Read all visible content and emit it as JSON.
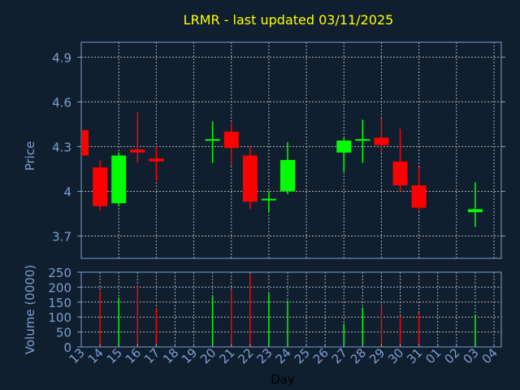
{
  "chart_data": {
    "type": "candlestick",
    "title": "LRMR - last updated 03/11/2025",
    "xlabel": "Day",
    "price_ylabel": "Price",
    "volume_ylabel": "Volume (0000)",
    "x_tick_labels": [
      "13",
      "14",
      "15",
      "16",
      "17",
      "18",
      "19",
      "20",
      "21",
      "22",
      "23",
      "24",
      "25",
      "26",
      "27",
      "28",
      "29",
      "30",
      "31",
      "01",
      "02",
      "03",
      "04"
    ],
    "price_ylim": [
      3.55,
      5.0
    ],
    "price_ticks": [
      3.7,
      4,
      4.3,
      4.6,
      4.9
    ],
    "price_tick_labels": [
      "3.7",
      "4",
      "4.3",
      "4.6",
      "4.9"
    ],
    "volume_ylim": [
      0,
      250
    ],
    "volume_ticks": [
      0,
      50,
      100,
      150,
      200,
      250
    ],
    "volume_tick_labels": [
      "0",
      "50",
      "100",
      "150",
      "200",
      "250"
    ],
    "grid": true,
    "colors": {
      "up": "#00ff00",
      "down": "#ff0000",
      "title": "#ffff00",
      "axis": "#7f9fcf",
      "background": "#0f1f2f",
      "grid": "#b0b0b0"
    },
    "candles": [
      {
        "day": "13",
        "open": 4.41,
        "high": 4.41,
        "low": 4.24,
        "close": 4.24,
        "volume": null
      },
      {
        "day": "14",
        "open": 4.16,
        "high": 4.21,
        "low": 3.87,
        "close": 3.9,
        "volume": 187
      },
      {
        "day": "15",
        "open": 3.92,
        "high": 4.26,
        "low": 3.9,
        "close": 4.24,
        "volume": 165
      },
      {
        "day": "16",
        "open": 4.28,
        "high": 4.53,
        "low": 4.19,
        "close": 4.26,
        "volume": 205
      },
      {
        "day": "17",
        "open": 4.22,
        "high": 4.3,
        "low": 4.07,
        "close": 4.2,
        "volume": 129
      },
      {
        "day": "20",
        "open": 4.34,
        "high": 4.47,
        "low": 4.19,
        "close": 4.35,
        "volume": 168
      },
      {
        "day": "21",
        "open": 4.4,
        "high": 4.46,
        "low": 4.17,
        "close": 4.29,
        "volume": 188
      },
      {
        "day": "22",
        "open": 4.24,
        "high": 4.3,
        "low": 3.88,
        "close": 3.93,
        "volume": 243
      },
      {
        "day": "23",
        "open": 3.94,
        "high": 4.0,
        "low": 3.86,
        "close": 3.95,
        "volume": 179
      },
      {
        "day": "24",
        "open": 4.0,
        "high": 4.33,
        "low": 3.98,
        "close": 4.21,
        "volume": 155
      },
      {
        "day": "27",
        "open": 4.26,
        "high": 4.36,
        "low": 4.13,
        "close": 4.34,
        "volume": 78
      },
      {
        "day": "28",
        "open": 4.34,
        "high": 4.48,
        "low": 4.19,
        "close": 4.35,
        "volume": 132
      },
      {
        "day": "29",
        "open": 4.36,
        "high": 4.49,
        "low": 4.26,
        "close": 4.31,
        "volume": 139
      },
      {
        "day": "30",
        "open": 4.2,
        "high": 4.42,
        "low": 4.0,
        "close": 4.04,
        "volume": 103
      },
      {
        "day": "31",
        "open": 4.04,
        "high": 4.16,
        "low": 3.87,
        "close": 3.89,
        "volume": 114
      },
      {
        "day": "03",
        "open": 3.86,
        "high": 4.06,
        "low": 3.76,
        "close": 3.88,
        "volume": 109
      }
    ]
  }
}
